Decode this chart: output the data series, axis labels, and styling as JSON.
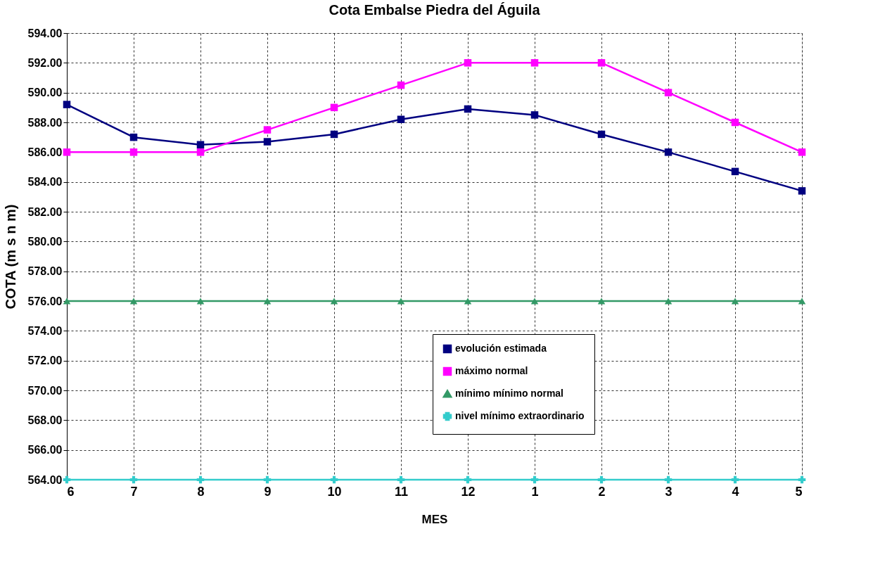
{
  "chart_data": {
    "type": "line",
    "title": "Cota Embalse Piedra del Águila",
    "xlabel": "MES",
    "ylabel": "COTA (m s n m)",
    "categories": [
      "6",
      "7",
      "8",
      "9",
      "10",
      "11",
      "12",
      "1",
      "2",
      "3",
      "4",
      "5"
    ],
    "series": [
      {
        "name": "evolución estimada",
        "color": "#000080",
        "marker": "square",
        "values": [
          589.2,
          587.0,
          586.5,
          586.7,
          587.2,
          588.2,
          588.9,
          588.5,
          587.2,
          586.0,
          584.7,
          583.4
        ]
      },
      {
        "name": "máximo normal",
        "color": "#ff00ff",
        "marker": "square",
        "values": [
          586,
          586,
          586,
          587.5,
          589,
          590.5,
          592,
          592,
          592,
          590,
          588,
          586
        ]
      },
      {
        "name": "mínimo mínimo normal",
        "color": "#339966",
        "marker": "triangle",
        "values": [
          576,
          576,
          576,
          576,
          576,
          576,
          576,
          576,
          576,
          576,
          576,
          576
        ]
      },
      {
        "name": "nivel mínimo extraordinario",
        "color": "#33cccc",
        "marker": "cross",
        "values": [
          564,
          564,
          564,
          564,
          564,
          564,
          564,
          564,
          564,
          564,
          564,
          564
        ]
      }
    ],
    "ylim": [
      564,
      594
    ],
    "yticks": [
      {
        "value": 564,
        "label": "564.00"
      },
      {
        "value": 566,
        "label": "566.00"
      },
      {
        "value": 568,
        "label": "568.00"
      },
      {
        "value": 570,
        "label": "570.00"
      },
      {
        "value": 572,
        "label": "572.00"
      },
      {
        "value": 574,
        "label": "574.00"
      },
      {
        "value": 576,
        "label": "576.00"
      },
      {
        "value": 578,
        "label": "578.00"
      },
      {
        "value": 580,
        "label": "580.00"
      },
      {
        "value": 582,
        "label": "582.00"
      },
      {
        "value": 584,
        "label": "584.00"
      },
      {
        "value": 586,
        "label": "586.00"
      },
      {
        "value": 588,
        "label": "588.00"
      },
      {
        "value": 590,
        "label": "590.00"
      },
      {
        "value": 592,
        "label": "592.00"
      },
      {
        "value": 594,
        "label": "594.00"
      }
    ],
    "grid": true,
    "legend": "bottom",
    "line_style": "solid"
  }
}
